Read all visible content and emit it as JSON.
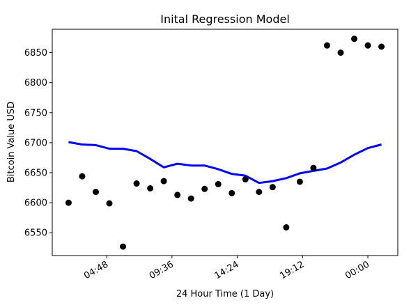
{
  "chart_data": {
    "type": "scatter",
    "title": "Inital Regression Model",
    "xlabel": "24 Hour Time (1 Day)",
    "ylabel": "Bitcoin Value USD",
    "x_ticks": [
      "04:48",
      "09:36",
      "14:24",
      "19:12",
      "00:00"
    ],
    "x_tick_hours": [
      4.8,
      9.6,
      14.4,
      19.2,
      24.0
    ],
    "xlim_hours": [
      0.8,
      26.2
    ],
    "yticks": [
      6550,
      6600,
      6650,
      6700,
      6750,
      6800,
      6850
    ],
    "ylim": [
      6512,
      6889
    ],
    "grid": false,
    "colors": {
      "points": "#000000",
      "regression": "#0000ff"
    },
    "series": [
      {
        "type": "scatter",
        "x_hours": [
          2,
          3,
          4,
          5,
          6,
          7,
          8,
          9,
          10,
          11,
          12,
          13,
          14,
          15,
          16,
          17,
          18,
          19,
          20,
          21,
          22,
          23,
          24,
          25
        ],
        "values": [
          6600,
          6644,
          6618,
          6599,
          6527,
          6632,
          6624,
          6636,
          6613,
          6607,
          6623,
          6631,
          6616,
          6639,
          6618,
          6626,
          6559,
          6635,
          6658,
          6862,
          6850,
          6873,
          6862,
          6860
        ]
      },
      {
        "type": "line",
        "x_hours": [
          2,
          3,
          4,
          5,
          6,
          7,
          8,
          9,
          10,
          11,
          12,
          13,
          14,
          15,
          16,
          17,
          18,
          19,
          20,
          21,
          22,
          23,
          24,
          25
        ],
        "values": [
          6701,
          6697,
          6696,
          6690,
          6690,
          6686,
          6673,
          6659,
          6665,
          6662,
          6662,
          6656,
          6648,
          6645,
          6633,
          6636,
          6641,
          6649,
          6653,
          6657,
          6667,
          6680,
          6691,
          6697
        ]
      }
    ]
  }
}
